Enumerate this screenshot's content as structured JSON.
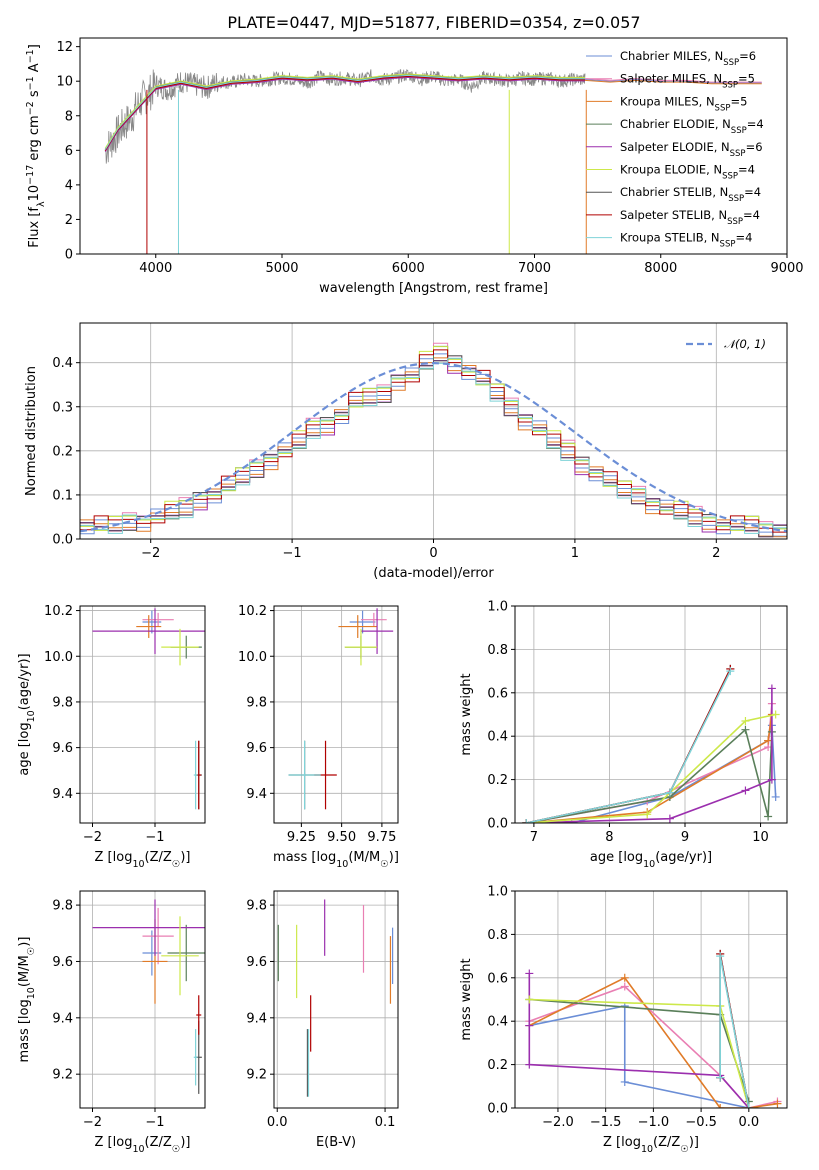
{
  "figure": {
    "title": "PLATE=0447, MJD=51877, FIBERID=0354, z=0.057"
  },
  "colors": {
    "Chabrier MILES": "#6b8ed6",
    "Salpeter MILES": "#e97fb3",
    "Kroupa MILES": "#e07b28",
    "Chabrier ELODIE": "#5a7f5a",
    "Salpeter ELODIE": "#9b2fae",
    "Kroupa ELODIE": "#cde84a",
    "Chabrier STELIB": "#555555",
    "Salpeter STELIB": "#b00000",
    "Kroupa STELIB": "#7fd3d8",
    "data": "#888888",
    "normal": "#6b8ed6"
  },
  "chart_data": [
    {
      "id": "spectrum",
      "type": "line",
      "title": "PLATE=0447, MJD=51877, FIBERID=0354, z=0.057",
      "xlabel": "wavelength [Angstrom, rest frame]",
      "ylabel": "Flux [fλ10−17 erg cm−2 s−1 A−1]",
      "xlim": [
        3400,
        9000
      ],
      "ylim": [
        0,
        12.5
      ],
      "xticks": [
        4000,
        5000,
        6000,
        7000,
        8000,
        9000
      ],
      "yticks": [
        0,
        2,
        4,
        6,
        8,
        10,
        12
      ],
      "grid": false,
      "legend_position": "right",
      "legend": [
        {
          "name": "Chabrier MILES",
          "sub": "SSP",
          "n": "6"
        },
        {
          "name": "Salpeter MILES",
          "sub": "SSP",
          "n": "5"
        },
        {
          "name": "Kroupa MILES",
          "sub": "SSP",
          "n": "5"
        },
        {
          "name": "Chabrier ELODIE",
          "sub": "SSP",
          "n": "4"
        },
        {
          "name": "Salpeter ELODIE",
          "sub": "SSP",
          "n": "6"
        },
        {
          "name": "Kroupa ELODIE",
          "sub": "SSP",
          "n": "4"
        },
        {
          "name": "Chabrier STELIB",
          "sub": "SSP",
          "n": "4"
        },
        {
          "name": "Salpeter STELIB",
          "sub": "SSP",
          "n": "4"
        },
        {
          "name": "Kroupa STELIB",
          "sub": "SSP",
          "n": "4"
        }
      ],
      "data_series": {
        "name": "",
        "x": [
          3600,
          3650,
          3700,
          3750,
          3800,
          3850,
          3900,
          3950,
          4000,
          4100,
          4200,
          4300,
          4400,
          4500,
          4600,
          4700,
          4800,
          4900,
          5000,
          5100,
          5200,
          5300,
          5400,
          5500,
          5600,
          5700,
          5800,
          5900,
          6000,
          6100,
          6200,
          6300,
          6400,
          6500,
          6600,
          6700,
          6800,
          6900,
          7000,
          7100,
          7200,
          7300,
          7400
        ],
        "y": [
          6.0,
          6.5,
          7.0,
          7.5,
          7.8,
          8.5,
          9.0,
          9.3,
          9.8,
          9.5,
          10.0,
          9.8,
          9.6,
          10.0,
          9.9,
          10.1,
          10.0,
          10.1,
          10.2,
          10.1,
          9.9,
          10.3,
          10.1,
          10.2,
          10.0,
          10.3,
          10.1,
          10.2,
          10.4,
          10.1,
          10.3,
          10.0,
          10.1,
          9.7,
          10.2,
          10.1,
          10.0,
          10.2,
          10.1,
          10.2,
          10.0,
          10.1,
          10.1
        ]
      },
      "model_series": {
        "name": "",
        "x": [
          3600,
          3700,
          3800,
          3900,
          4000,
          4200,
          4400,
          4600,
          4800,
          5000,
          5200,
          5400,
          5600,
          5800,
          6000,
          6200,
          6400,
          6600,
          6800,
          7000,
          7200,
          7400,
          7600,
          7800,
          8000,
          8200,
          8400,
          8600,
          8800
        ],
        "y": [
          6.0,
          7.2,
          8.0,
          8.8,
          9.6,
          9.9,
          9.6,
          9.9,
          10.0,
          10.2,
          10.1,
          10.2,
          10.0,
          10.2,
          10.3,
          10.2,
          10.1,
          10.2,
          10.1,
          10.2,
          10.1,
          10.1,
          10.0,
          10.1,
          10.0,
          10.0,
          9.9,
          9.9,
          9.9
        ]
      }
    },
    {
      "id": "residuals",
      "type": "line",
      "xlabel": "(data-model)/error",
      "ylabel": "Normed distribution",
      "xlim": [
        -2.5,
        2.5
      ],
      "ylim": [
        0,
        0.49
      ],
      "xticks": [
        -2,
        -1,
        0,
        1,
        2
      ],
      "yticks": [
        0.0,
        0.1,
        0.2,
        0.3,
        0.4
      ],
      "grid": true,
      "legend_position": "top-right",
      "legend": [
        {
          "name": "𝒩(0, 1)"
        }
      ],
      "bin_edges_start": -2.5,
      "bin_width": 0.1,
      "histogram": [
        0.03,
        0.03,
        0.03,
        0.04,
        0.04,
        0.05,
        0.06,
        0.07,
        0.09,
        0.1,
        0.12,
        0.14,
        0.16,
        0.18,
        0.2,
        0.22,
        0.25,
        0.26,
        0.28,
        0.31,
        0.32,
        0.33,
        0.36,
        0.37,
        0.4,
        0.42,
        0.4,
        0.38,
        0.36,
        0.33,
        0.3,
        0.27,
        0.25,
        0.22,
        0.2,
        0.17,
        0.15,
        0.13,
        0.11,
        0.1,
        0.08,
        0.07,
        0.06,
        0.05,
        0.04,
        0.03,
        0.03,
        0.03,
        0.02,
        0.02
      ]
    },
    {
      "id": "age_vs_Z",
      "type": "scatter",
      "xlabel": "Z [log10(Z/Z☉)]",
      "ylabel": "age  [log10(age/yr)]",
      "xlim": [
        -2.2,
        -0.2
      ],
      "ylim": [
        9.27,
        10.22
      ],
      "xticks": [
        -2,
        -1
      ],
      "yticks": [
        9.4,
        9.6,
        9.8,
        10.0,
        10.2
      ],
      "grid": true,
      "points": [
        {
          "name": "Chabrier MILES",
          "x": -1.05,
          "y": 10.15,
          "xerr": 0.15,
          "yerr": 0.05
        },
        {
          "name": "Salpeter MILES",
          "x": -0.95,
          "y": 10.16,
          "xerr": 0.25,
          "yerr": 0.03
        },
        {
          "name": "Kroupa MILES",
          "x": -1.1,
          "y": 10.13,
          "xerr": 0.2,
          "yerr": 0.05
        },
        {
          "name": "Chabrier ELODIE",
          "x": -0.5,
          "y": 10.04,
          "xerr": 0.25,
          "yerr": 0.05
        },
        {
          "name": "Salpeter ELODIE",
          "x": -1.0,
          "y": 10.11,
          "xerr": 1.0,
          "yerr": 0.1
        },
        {
          "name": "Kroupa ELODIE",
          "x": -0.6,
          "y": 10.04,
          "xerr": 0.3,
          "yerr": 0.08
        },
        {
          "name": "Chabrier STELIB",
          "x": -0.3,
          "y": 9.48,
          "xerr": 0.05,
          "yerr": 0.15
        },
        {
          "name": "Salpeter STELIB",
          "x": -0.3,
          "y": 9.48,
          "xerr": 0.04,
          "yerr": 0.15
        },
        {
          "name": "Kroupa STELIB",
          "x": -0.35,
          "y": 9.48,
          "xerr": 0.03,
          "yerr": 0.15
        }
      ]
    },
    {
      "id": "age_vs_mass",
      "type": "scatter",
      "xlabel": "mass [log10(M/M☉)]",
      "ylabel": "",
      "xlim": [
        9.08,
        9.85
      ],
      "ylim": [
        9.27,
        10.22
      ],
      "xticks": [
        9.25,
        9.5,
        9.75
      ],
      "yticks": [
        9.4,
        9.6,
        9.8,
        10.0,
        10.2
      ],
      "grid": true,
      "points": [
        {
          "name": "Chabrier MILES",
          "x": 9.63,
          "y": 10.15,
          "xerr": 0.08,
          "yerr": 0.05
        },
        {
          "name": "Salpeter MILES",
          "x": 9.7,
          "y": 10.16,
          "xerr": 0.08,
          "yerr": 0.03
        },
        {
          "name": "Kroupa MILES",
          "x": 9.6,
          "y": 10.13,
          "xerr": 0.12,
          "yerr": 0.05
        },
        {
          "name": "Chabrier ELODIE",
          "x": 9.62,
          "y": 10.04,
          "xerr": 0.1,
          "yerr": 0.05
        },
        {
          "name": "Salpeter ELODIE",
          "x": 9.72,
          "y": 10.11,
          "xerr": 0.1,
          "yerr": 0.1
        },
        {
          "name": "Kroupa ELODIE",
          "x": 9.62,
          "y": 10.04,
          "xerr": 0.1,
          "yerr": 0.08
        },
        {
          "name": "Chabrier STELIB",
          "x": 9.27,
          "y": 9.48,
          "xerr": 0.1,
          "yerr": 0.15
        },
        {
          "name": "Salpeter STELIB",
          "x": 9.4,
          "y": 9.48,
          "xerr": 0.07,
          "yerr": 0.15
        },
        {
          "name": "Kroupa STELIB",
          "x": 9.27,
          "y": 9.48,
          "xerr": 0.1,
          "yerr": 0.15
        }
      ]
    },
    {
      "id": "mass_weight_vs_age",
      "type": "line",
      "xlabel": "age  [log10(age/yr)]",
      "ylabel": "mass weight",
      "xlim": [
        6.75,
        10.35
      ],
      "ylim": [
        0,
        1.0
      ],
      "xticks": [
        7,
        8,
        9,
        10
      ],
      "yticks": [
        0.0,
        0.2,
        0.4,
        0.6,
        0.8,
        1.0
      ],
      "grid": true,
      "series": [
        {
          "name": "Chabrier MILES",
          "x": [
            6.9,
            7.5,
            8.8,
            10.1,
            10.15,
            10.2
          ],
          "y": [
            0.0,
            0.0,
            0.12,
            0.38,
            0.45,
            0.12
          ]
        },
        {
          "name": "Salpeter MILES",
          "x": [
            6.9,
            8.5,
            10.1,
            10.15
          ],
          "y": [
            0.0,
            0.1,
            0.35,
            0.55
          ]
        },
        {
          "name": "Kroupa MILES",
          "x": [
            6.9,
            8.5,
            10.1,
            10.15
          ],
          "y": [
            0.0,
            0.05,
            0.38,
            0.5
          ]
        },
        {
          "name": "Chabrier ELODIE",
          "x": [
            6.9,
            8.8,
            9.8,
            10.1,
            10.15
          ],
          "y": [
            0.0,
            0.12,
            0.43,
            0.03,
            0.42
          ]
        },
        {
          "name": "Salpeter ELODIE",
          "x": [
            6.9,
            8.8,
            9.8,
            10.15,
            10.15
          ],
          "y": [
            0.0,
            0.02,
            0.15,
            0.2,
            0.62
          ]
        },
        {
          "name": "Kroupa ELODIE",
          "x": [
            6.9,
            8.5,
            9.8,
            10.2
          ],
          "y": [
            0.0,
            0.04,
            0.47,
            0.5
          ]
        },
        {
          "name": "Chabrier STELIB",
          "x": [
            6.9,
            8.8,
            9.6
          ],
          "y": [
            0.0,
            0.14,
            0.71
          ]
        },
        {
          "name": "Salpeter STELIB",
          "x": [
            6.9,
            8.8,
            9.6
          ],
          "y": [
            0.0,
            0.14,
            0.71
          ]
        },
        {
          "name": "Kroupa STELIB",
          "x": [
            6.9,
            8.8,
            9.6
          ],
          "y": [
            0.0,
            0.14,
            0.7
          ]
        }
      ]
    },
    {
      "id": "mass_vs_Z",
      "type": "scatter",
      "xlabel": "Z [log10(Z/Z☉)]",
      "ylabel": "mass [log10(M/M☉)]",
      "xlim": [
        -2.2,
        -0.2
      ],
      "ylim": [
        9.08,
        9.85
      ],
      "xticks": [
        -2,
        -1
      ],
      "yticks": [
        9.2,
        9.4,
        9.6,
        9.8
      ],
      "grid": true,
      "points": [
        {
          "name": "Chabrier MILES",
          "x": -1.05,
          "y": 9.63,
          "xerr": 0.15,
          "yerr": 0.08
        },
        {
          "name": "Salpeter MILES",
          "x": -0.95,
          "y": 9.69,
          "xerr": 0.25,
          "yerr": 0.1
        },
        {
          "name": "Kroupa MILES",
          "x": -1.0,
          "y": 9.6,
          "xerr": 0.2,
          "yerr": 0.15
        },
        {
          "name": "Chabrier ELODIE",
          "x": -0.5,
          "y": 9.63,
          "xerr": 0.3,
          "yerr": 0.1
        },
        {
          "name": "Salpeter ELODIE",
          "x": -1.0,
          "y": 9.72,
          "xerr": 1.0,
          "yerr": 0.1
        },
        {
          "name": "Kroupa ELODIE",
          "x": -0.6,
          "y": 9.62,
          "xerr": 0.3,
          "yerr": 0.14
        },
        {
          "name": "Chabrier STELIB",
          "x": -0.3,
          "y": 9.26,
          "xerr": 0.05,
          "yerr": 0.13
        },
        {
          "name": "Salpeter STELIB",
          "x": -0.3,
          "y": 9.41,
          "xerr": 0.04,
          "yerr": 0.07
        },
        {
          "name": "Kroupa STELIB",
          "x": -0.35,
          "y": 9.26,
          "xerr": 0.03,
          "yerr": 0.1
        }
      ]
    },
    {
      "id": "mass_vs_ebv",
      "type": "scatter",
      "xlabel": "E(B-V)",
      "ylabel": "",
      "xlim": [
        -0.003,
        0.112
      ],
      "ylim": [
        9.08,
        9.85
      ],
      "xticks": [
        0.0,
        0.1
      ],
      "yticks": [
        9.2,
        9.4,
        9.6,
        9.8
      ],
      "grid": true,
      "points": [
        {
          "name": "Chabrier MILES",
          "x": 0.107,
          "y": 9.62,
          "yerr": 0.1
        },
        {
          "name": "Salpeter MILES",
          "x": 0.08,
          "y": 9.68,
          "yerr": 0.12
        },
        {
          "name": "Kroupa MILES",
          "x": 0.105,
          "y": 9.57,
          "yerr": 0.12
        },
        {
          "name": "Chabrier ELODIE",
          "x": 0.001,
          "y": 9.63,
          "yerr": 0.1
        },
        {
          "name": "Salpeter ELODIE",
          "x": 0.044,
          "y": 9.72,
          "yerr": 0.1
        },
        {
          "name": "Kroupa ELODIE",
          "x": 0.018,
          "y": 9.6,
          "yerr": 0.13
        },
        {
          "name": "Chabrier STELIB",
          "x": 0.028,
          "y": 9.24,
          "yerr": 0.12
        },
        {
          "name": "Salpeter STELIB",
          "x": 0.031,
          "y": 9.38,
          "yerr": 0.1
        },
        {
          "name": "Kroupa STELIB",
          "x": 0.029,
          "y": 9.24,
          "yerr": 0.12
        }
      ]
    },
    {
      "id": "mass_weight_vs_Z",
      "type": "line",
      "xlabel": "Z [log10(Z/Z☉)]",
      "ylabel": "mass weight",
      "xlim": [
        -2.45,
        0.4
      ],
      "ylim": [
        0,
        1.0
      ],
      "xticks": [
        -2.0,
        -1.5,
        -1.0,
        -0.5,
        0.0
      ],
      "yticks": [
        0.0,
        0.2,
        0.4,
        0.6,
        0.8,
        1.0
      ],
      "grid": true,
      "series": [
        {
          "name": "Chabrier MILES",
          "x": [
            -2.3,
            -1.3,
            -1.3,
            0.0
          ],
          "y": [
            0.38,
            0.47,
            0.12,
            0.0
          ]
        },
        {
          "name": "Salpeter MILES",
          "x": [
            -2.3,
            -1.3,
            -0.3,
            0.0,
            0.3
          ],
          "y": [
            0.4,
            0.56,
            0.15,
            0.0,
            0.03
          ]
        },
        {
          "name": "Kroupa MILES",
          "x": [
            -2.3,
            -1.3,
            -0.3,
            0.0,
            0.3
          ],
          "y": [
            0.38,
            0.6,
            0.0,
            0.0,
            0.02
          ]
        },
        {
          "name": "Chabrier ELODIE",
          "x": [
            -2.3,
            -0.3,
            0.0
          ],
          "y": [
            0.5,
            0.43,
            0.03
          ]
        },
        {
          "name": "Salpeter ELODIE",
          "x": [
            -2.3,
            -2.3,
            -2.3,
            -0.3,
            0.0
          ],
          "y": [
            0.62,
            0.38,
            0.2,
            0.15,
            0.0
          ]
        },
        {
          "name": "Kroupa ELODIE",
          "x": [
            -2.3,
            -0.3,
            -0.3,
            0.0
          ],
          "y": [
            0.5,
            0.47,
            0.47,
            0.0
          ]
        },
        {
          "name": "Chabrier STELIB",
          "x": [
            -0.3,
            -0.3,
            0.0
          ],
          "y": [
            0.14,
            0.71,
            0.0
          ]
        },
        {
          "name": "Salpeter STELIB",
          "x": [
            -0.3,
            -0.3,
            0.0
          ],
          "y": [
            0.14,
            0.71,
            0.0
          ]
        },
        {
          "name": "Kroupa STELIB",
          "x": [
            -0.3,
            -0.3,
            0.0
          ],
          "y": [
            0.14,
            0.7,
            0.0
          ]
        }
      ]
    }
  ]
}
